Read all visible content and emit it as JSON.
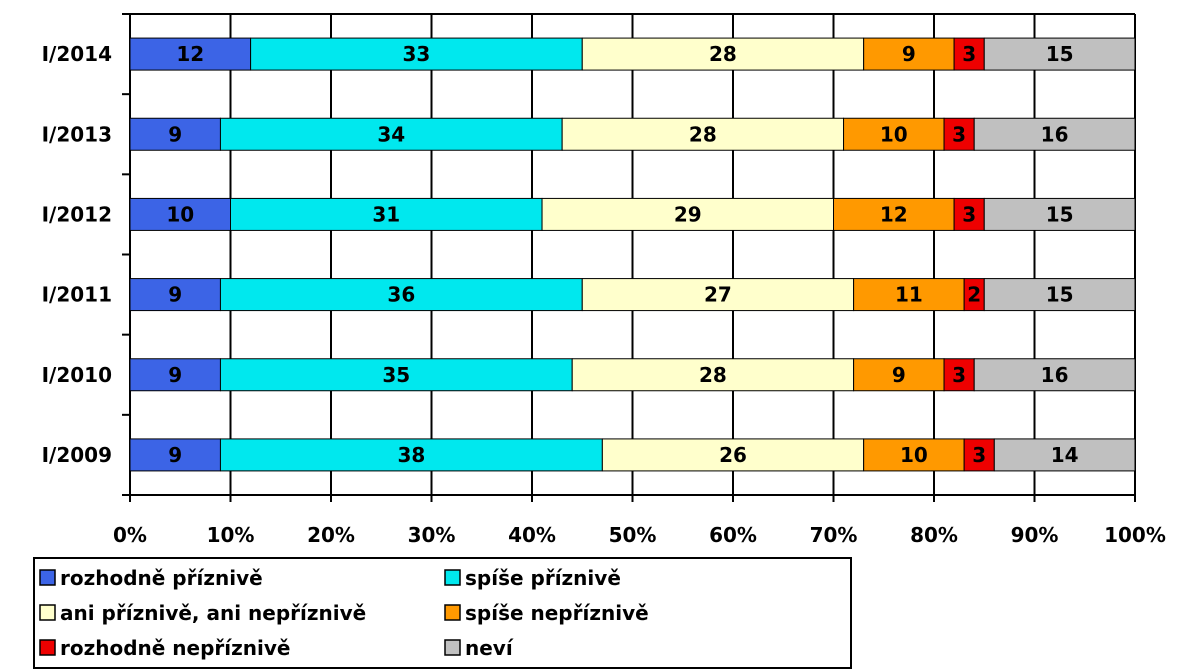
{
  "chart_data": {
    "type": "stacked_bar_horizontal",
    "categories": [
      "I/2014",
      "I/2013",
      "I/2012",
      "I/2011",
      "I/2010",
      "I/2009"
    ],
    "series": [
      {
        "name": "rozhodně příznivě",
        "color": "#3c64e6",
        "values": [
          12,
          9,
          10,
          9,
          9,
          9
        ]
      },
      {
        "name": "spíše příznivě",
        "color": "#00e8ee",
        "values": [
          33,
          34,
          31,
          36,
          35,
          38
        ]
      },
      {
        "name": "ani příznivě, ani nepříznivě",
        "color": "#ffffcc",
        "values": [
          28,
          28,
          29,
          27,
          28,
          26
        ]
      },
      {
        "name": "spíše nepříznivě",
        "color": "#ff9900",
        "values": [
          9,
          10,
          12,
          11,
          9,
          10
        ]
      },
      {
        "name": "rozhodně nepříznivě",
        "color": "#ee0000",
        "values": [
          3,
          3,
          3,
          2,
          3,
          3
        ]
      },
      {
        "name": "neví",
        "color": "#c0c0c0",
        "values": [
          15,
          16,
          15,
          15,
          16,
          14
        ]
      }
    ],
    "xlim": [
      0,
      100
    ],
    "xticks": [
      {
        "value": 0,
        "label": "0%"
      },
      {
        "value": 10,
        "label": "10%"
      },
      {
        "value": 20,
        "label": "20%"
      },
      {
        "value": 30,
        "label": "30%"
      },
      {
        "value": 40,
        "label": "40%"
      },
      {
        "value": 50,
        "label": "50%"
      },
      {
        "value": 60,
        "label": "60%"
      },
      {
        "value": 70,
        "label": "70%"
      },
      {
        "value": 80,
        "label": "80%"
      },
      {
        "value": 90,
        "label": "90%"
      },
      {
        "value": 100,
        "label": "100%"
      }
    ],
    "grid": true
  }
}
